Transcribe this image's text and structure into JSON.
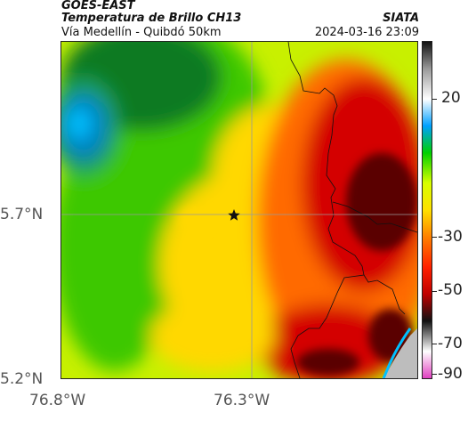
{
  "header": {
    "satellite": "GOES-EAST",
    "product": "Temperatura de Brillo CH13",
    "route": "Vía Medellín - Quibdó 50km",
    "org": "SIATA",
    "timestamp": "2024-03-16 23:09"
  },
  "map": {
    "lat_ticks": [
      "5.7°N",
      "5.2°N"
    ],
    "lon_ticks": [
      "76.8°W",
      "76.3°W"
    ],
    "marker": "star-icon",
    "colorbar_ticks": [
      "20",
      "-30",
      "-50",
      "-70",
      "-90"
    ],
    "colorbar_stops": [
      "#e040c0",
      "#ffffff",
      "#111111",
      "#c00000",
      "#ff2000",
      "#ff8000",
      "#ffe000",
      "#d8ff00",
      "#00d000",
      "#00a0ff",
      "#ffffff",
      "#999999",
      "#111111"
    ],
    "colors": {
      "deep_cold": "#5a0000",
      "cold_red": "#d40000",
      "orange": "#ff6a00",
      "yellow": "#ffd800",
      "yellow_green": "#c8f000",
      "green": "#3cc800",
      "dark_green": "#0a7a20",
      "teal": "#1aa05a",
      "blue": "#0080c0",
      "cyan": "#00c0ff"
    }
  }
}
